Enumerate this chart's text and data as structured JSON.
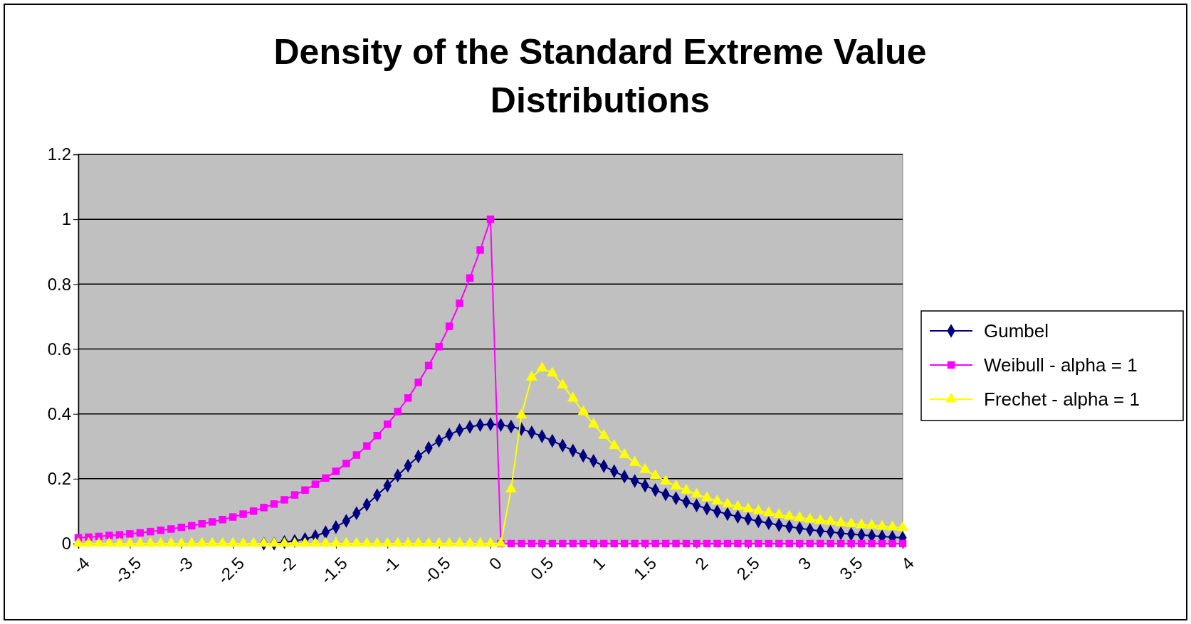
{
  "chart_data": {
    "type": "line",
    "title": "Density of the Standard Extreme Value Distributions",
    "categories": [
      "-4",
      null,
      null,
      null,
      null,
      "-3.5",
      null,
      null,
      null,
      null,
      "-3",
      null,
      null,
      null,
      null,
      "-2.5",
      null,
      null,
      null,
      null,
      "-2",
      null,
      null,
      null,
      null,
      "-1.5",
      null,
      null,
      null,
      null,
      "-1",
      null,
      null,
      null,
      null,
      "-0.5",
      null,
      null,
      null,
      null,
      "0",
      null,
      null,
      null,
      null,
      "0.5",
      null,
      null,
      null,
      null,
      "1",
      null,
      null,
      null,
      null,
      "1.5",
      null,
      null,
      null,
      null,
      "2",
      null,
      null,
      null,
      null,
      "2.5",
      null,
      null,
      null,
      null,
      "3",
      null,
      null,
      null,
      null,
      "3.5",
      null,
      null,
      null,
      null,
      "4"
    ],
    "series": [
      {
        "name": "Gumbel",
        "color": "#000080",
        "marker": "diamond",
        "values": [
          null,
          null,
          null,
          null,
          null,
          null,
          null,
          null,
          null,
          null,
          null,
          null,
          null,
          null,
          null,
          null,
          null,
          null,
          0,
          0,
          0.005,
          0.008,
          0.014,
          0.023,
          0.035,
          0.051,
          0.07,
          0.094,
          0.12,
          0.149,
          0.179,
          0.21,
          0.24,
          0.269,
          0.295,
          0.317,
          0.336,
          0.35,
          0.36,
          0.366,
          0.368,
          0.366,
          0.361,
          0.353,
          0.343,
          0.331,
          0.317,
          0.302,
          0.287,
          0.271,
          0.255,
          0.239,
          0.223,
          0.207,
          0.193,
          0.179,
          0.165,
          0.152,
          0.14,
          0.129,
          0.118,
          0.108,
          0.099,
          0.091,
          0.083,
          0.076,
          0.069,
          0.063,
          0.057,
          0.052,
          0.047,
          0.043,
          0.039,
          0.036,
          0.032,
          0.029,
          0.027,
          0.024,
          0.022,
          0.02,
          0.018
        ]
      },
      {
        "name": "Weibull - alpha = 1",
        "color": "#ff00ff",
        "marker": "square",
        "values": [
          0.018,
          0.02,
          0.022,
          0.025,
          0.027,
          0.03,
          0.033,
          0.037,
          0.041,
          0.045,
          0.05,
          0.055,
          0.061,
          0.067,
          0.074,
          0.082,
          0.091,
          0.1,
          0.111,
          0.122,
          0.135,
          0.15,
          0.165,
          0.183,
          0.202,
          0.223,
          0.247,
          0.273,
          0.301,
          0.333,
          0.368,
          0.407,
          0.449,
          0.497,
          0.549,
          0.607,
          0.67,
          0.741,
          0.819,
          0.905,
          1.0,
          0,
          0,
          0,
          0,
          0,
          0,
          0,
          0,
          0,
          0,
          0,
          0,
          0,
          0,
          0,
          0,
          0,
          0,
          0,
          0,
          0,
          0,
          0,
          0,
          0,
          0,
          0,
          0,
          0,
          0,
          0,
          0,
          0,
          0,
          0,
          0,
          0,
          0,
          0,
          0
        ]
      },
      {
        "name": "Frechet - alpha = 1",
        "color": "#ffff00",
        "marker": "triangle",
        "values": [
          0,
          0,
          0,
          0,
          0,
          0,
          0,
          0,
          0,
          0,
          0,
          0,
          0,
          0,
          0,
          0,
          0,
          0,
          0,
          0,
          0,
          0,
          0,
          0,
          0,
          0,
          0,
          0,
          0,
          0,
          0,
          0,
          0,
          0,
          0,
          0,
          0,
          0,
          0,
          0,
          0,
          0,
          0.168,
          0.396,
          0.513,
          0.541,
          0.525,
          0.489,
          0.448,
          0.406,
          0.368,
          0.333,
          0.302,
          0.274,
          0.25,
          0.228,
          0.209,
          0.192,
          0.177,
          0.164,
          0.152,
          0.141,
          0.131,
          0.122,
          0.114,
          0.107,
          0.101,
          0.095,
          0.089,
          0.084,
          0.08,
          0.075,
          0.071,
          0.068,
          0.064,
          0.061,
          0.058,
          0.056,
          0.053,
          0.051,
          0.049
        ]
      }
    ],
    "ylim": [
      0,
      1.2
    ],
    "yticks": [
      0,
      0.2,
      0.4,
      0.6,
      0.8,
      1,
      1.2
    ],
    "grid": "y",
    "legend": "right"
  }
}
